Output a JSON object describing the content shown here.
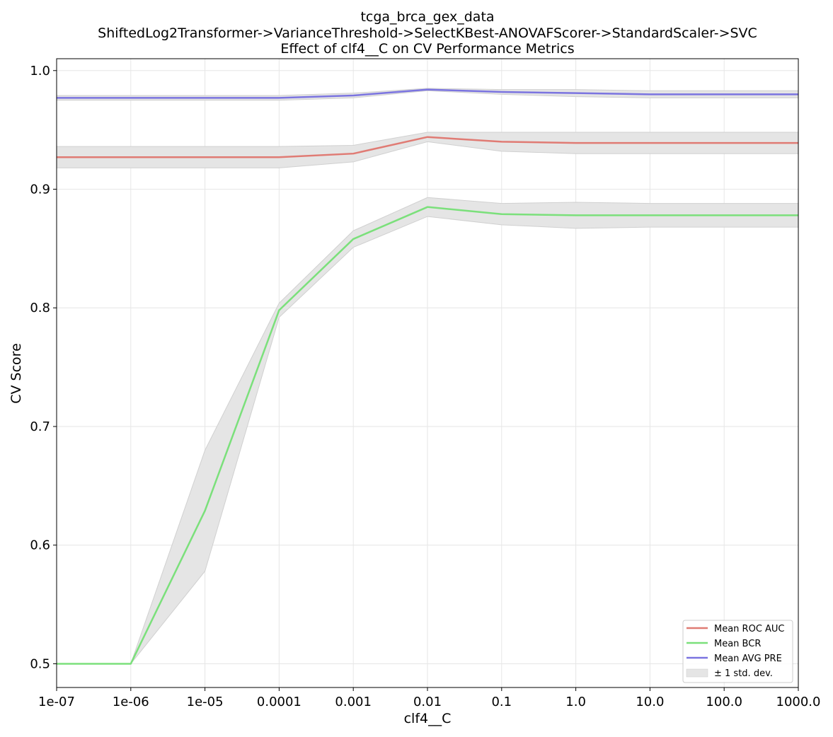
{
  "chart_data": {
    "type": "line",
    "title_lines": [
      "tcga_brca_gex_data",
      "ShiftedLog2Transformer->VarianceThreshold->SelectKBest-ANOVAFScorer->StandardScaler->SVC",
      "Effect of clf4__C on CV Performance Metrics"
    ],
    "xlabel": "clf4__C",
    "ylabel": "CV Score",
    "x_scale": "log",
    "x": [
      1e-07,
      1e-06,
      1e-05,
      0.0001,
      0.001,
      0.01,
      0.1,
      1.0,
      10.0,
      100.0,
      1000.0
    ],
    "x_tick_labels": [
      "1e-07",
      "1e-06",
      "1e-05",
      "0.0001",
      "0.001",
      "0.01",
      "0.1",
      "1.0",
      "10.0",
      "100.0",
      "1000.0"
    ],
    "ylim": [
      0.48,
      1.01
    ],
    "y_ticks": [
      0.5,
      0.6,
      0.7,
      0.8,
      0.9,
      1.0
    ],
    "y_tick_labels": [
      "0.5",
      "0.6",
      "0.7",
      "0.8",
      "0.9",
      "1.0"
    ],
    "grid": true,
    "legend_position": "bottom-right",
    "series": [
      {
        "name": "Mean ROC AUC",
        "color": "#e07b74",
        "values": [
          0.927,
          0.927,
          0.927,
          0.927,
          0.93,
          0.944,
          0.94,
          0.939,
          0.939,
          0.939,
          0.939
        ],
        "std": [
          0.009,
          0.009,
          0.009,
          0.009,
          0.007,
          0.004,
          0.008,
          0.009,
          0.009,
          0.009,
          0.009
        ]
      },
      {
        "name": "Mean BCR",
        "color": "#7be07b",
        "values": [
          0.5,
          0.5,
          0.629,
          0.798,
          0.858,
          0.885,
          0.879,
          0.878,
          0.878,
          0.878,
          0.878
        ],
        "std": [
          0.0,
          0.0,
          0.051,
          0.006,
          0.007,
          0.008,
          0.009,
          0.011,
          0.01,
          0.01,
          0.01
        ]
      },
      {
        "name": "Mean AVG PRE",
        "color": "#7b74e0",
        "values": [
          0.977,
          0.977,
          0.977,
          0.977,
          0.979,
          0.984,
          0.982,
          0.981,
          0.98,
          0.98,
          0.98
        ],
        "std": [
          0.002,
          0.002,
          0.002,
          0.002,
          0.002,
          0.001,
          0.002,
          0.003,
          0.003,
          0.003,
          0.003
        ]
      }
    ],
    "band_label": "± 1 std. dev.",
    "band_color": "#e5e5e5"
  }
}
